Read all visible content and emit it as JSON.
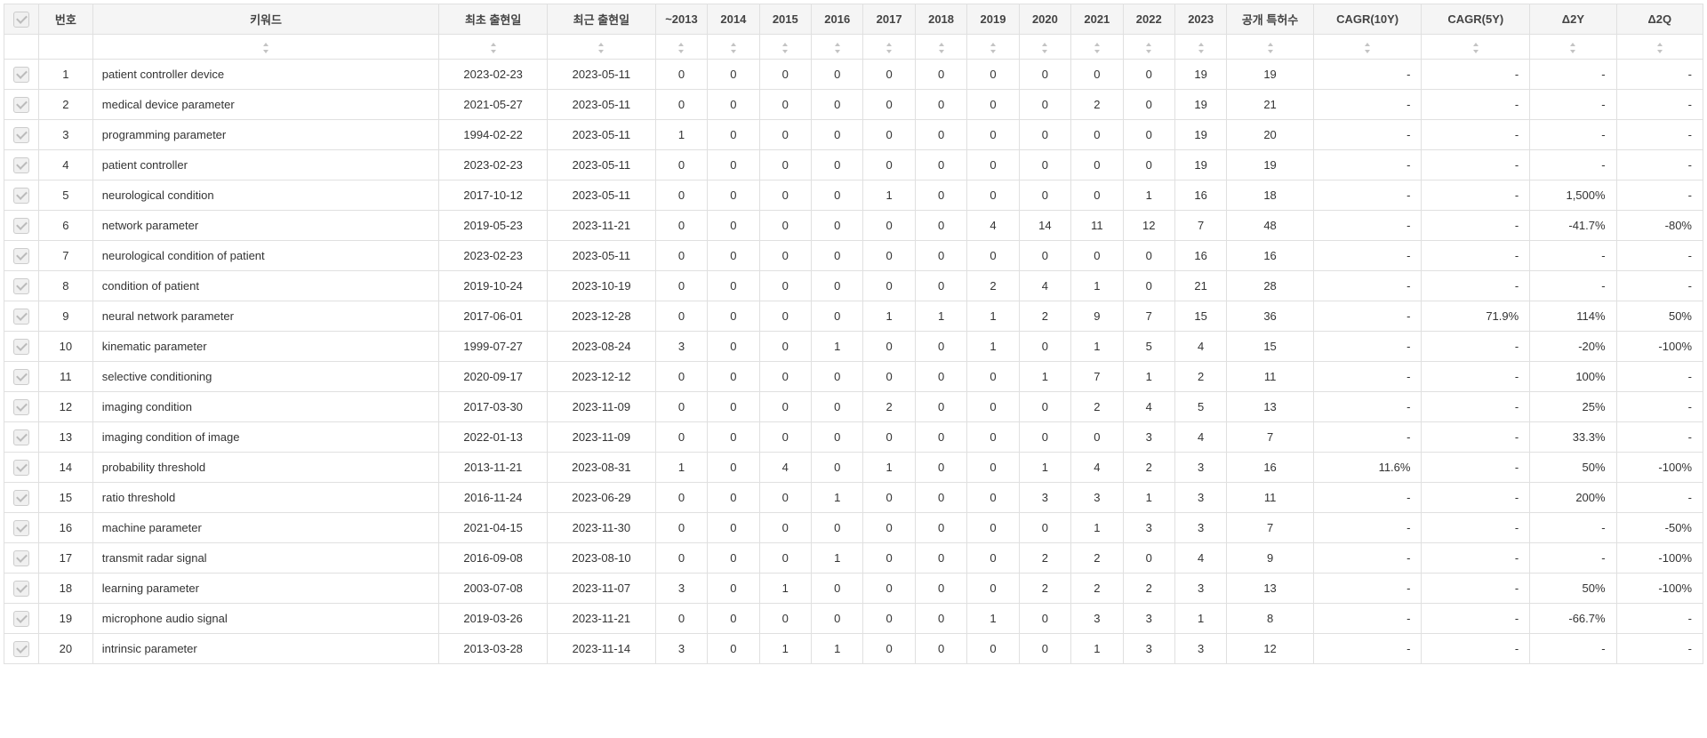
{
  "columns": {
    "check": "",
    "num": "번호",
    "keyword": "키워드",
    "first": "최초 출현일",
    "recent": "최근 출현일",
    "y2013": "~2013",
    "y2014": "2014",
    "y2015": "2015",
    "y2016": "2016",
    "y2017": "2017",
    "y2018": "2018",
    "y2019": "2019",
    "y2020": "2020",
    "y2021": "2021",
    "y2022": "2022",
    "y2023": "2023",
    "pub": "공개 특허수",
    "cagr10": "CAGR(10Y)",
    "cagr5": "CAGR(5Y)",
    "d2y": "Δ2Y",
    "d2q": "Δ2Q"
  },
  "rows": [
    {
      "n": "1",
      "kw": "patient controller device",
      "first": "2023-02-23",
      "recent": "2023-05-11",
      "y": [
        "0",
        "0",
        "0",
        "0",
        "0",
        "0",
        "0",
        "0",
        "0",
        "0",
        "19"
      ],
      "pub": "19",
      "c10": "-",
      "c5": "-",
      "d2y": "-",
      "d2q": "-"
    },
    {
      "n": "2",
      "kw": "medical device parameter",
      "first": "2021-05-27",
      "recent": "2023-05-11",
      "y": [
        "0",
        "0",
        "0",
        "0",
        "0",
        "0",
        "0",
        "0",
        "2",
        "0",
        "19"
      ],
      "pub": "21",
      "c10": "-",
      "c5": "-",
      "d2y": "-",
      "d2q": "-"
    },
    {
      "n": "3",
      "kw": "programming parameter",
      "first": "1994-02-22",
      "recent": "2023-05-11",
      "y": [
        "1",
        "0",
        "0",
        "0",
        "0",
        "0",
        "0",
        "0",
        "0",
        "0",
        "19"
      ],
      "pub": "20",
      "c10": "-",
      "c5": "-",
      "d2y": "-",
      "d2q": "-"
    },
    {
      "n": "4",
      "kw": "patient controller",
      "first": "2023-02-23",
      "recent": "2023-05-11",
      "y": [
        "0",
        "0",
        "0",
        "0",
        "0",
        "0",
        "0",
        "0",
        "0",
        "0",
        "19"
      ],
      "pub": "19",
      "c10": "-",
      "c5": "-",
      "d2y": "-",
      "d2q": "-"
    },
    {
      "n": "5",
      "kw": "neurological condition",
      "first": "2017-10-12",
      "recent": "2023-05-11",
      "y": [
        "0",
        "0",
        "0",
        "0",
        "1",
        "0",
        "0",
        "0",
        "0",
        "1",
        "16"
      ],
      "pub": "18",
      "c10": "-",
      "c5": "-",
      "d2y": "1,500%",
      "d2q": "-"
    },
    {
      "n": "6",
      "kw": "network parameter",
      "first": "2019-05-23",
      "recent": "2023-11-21",
      "y": [
        "0",
        "0",
        "0",
        "0",
        "0",
        "0",
        "4",
        "14",
        "11",
        "12",
        "7"
      ],
      "pub": "48",
      "c10": "-",
      "c5": "-",
      "d2y": "-41.7%",
      "d2q": "-80%"
    },
    {
      "n": "7",
      "kw": "neurological condition of patient",
      "first": "2023-02-23",
      "recent": "2023-05-11",
      "y": [
        "0",
        "0",
        "0",
        "0",
        "0",
        "0",
        "0",
        "0",
        "0",
        "0",
        "16"
      ],
      "pub": "16",
      "c10": "-",
      "c5": "-",
      "d2y": "-",
      "d2q": "-"
    },
    {
      "n": "8",
      "kw": "condition of patient",
      "first": "2019-10-24",
      "recent": "2023-10-19",
      "y": [
        "0",
        "0",
        "0",
        "0",
        "0",
        "0",
        "2",
        "4",
        "1",
        "0",
        "21"
      ],
      "pub": "28",
      "c10": "-",
      "c5": "-",
      "d2y": "-",
      "d2q": "-"
    },
    {
      "n": "9",
      "kw": "neural network parameter",
      "first": "2017-06-01",
      "recent": "2023-12-28",
      "y": [
        "0",
        "0",
        "0",
        "0",
        "1",
        "1",
        "1",
        "2",
        "9",
        "7",
        "15"
      ],
      "pub": "36",
      "c10": "-",
      "c5": "71.9%",
      "d2y": "114%",
      "d2q": "50%"
    },
    {
      "n": "10",
      "kw": "kinematic parameter",
      "first": "1999-07-27",
      "recent": "2023-08-24",
      "y": [
        "3",
        "0",
        "0",
        "1",
        "0",
        "0",
        "1",
        "0",
        "1",
        "5",
        "4"
      ],
      "pub": "15",
      "c10": "-",
      "c5": "-",
      "d2y": "-20%",
      "d2q": "-100%"
    },
    {
      "n": "11",
      "kw": "selective conditioning",
      "first": "2020-09-17",
      "recent": "2023-12-12",
      "y": [
        "0",
        "0",
        "0",
        "0",
        "0",
        "0",
        "0",
        "1",
        "7",
        "1",
        "2"
      ],
      "pub": "11",
      "c10": "-",
      "c5": "-",
      "d2y": "100%",
      "d2q": "-"
    },
    {
      "n": "12",
      "kw": "imaging condition",
      "first": "2017-03-30",
      "recent": "2023-11-09",
      "y": [
        "0",
        "0",
        "0",
        "0",
        "2",
        "0",
        "0",
        "0",
        "2",
        "4",
        "5"
      ],
      "pub": "13",
      "c10": "-",
      "c5": "-",
      "d2y": "25%",
      "d2q": "-"
    },
    {
      "n": "13",
      "kw": "imaging condition of image",
      "first": "2022-01-13",
      "recent": "2023-11-09",
      "y": [
        "0",
        "0",
        "0",
        "0",
        "0",
        "0",
        "0",
        "0",
        "0",
        "3",
        "4"
      ],
      "pub": "7",
      "c10": "-",
      "c5": "-",
      "d2y": "33.3%",
      "d2q": "-"
    },
    {
      "n": "14",
      "kw": "probability threshold",
      "first": "2013-11-21",
      "recent": "2023-08-31",
      "y": [
        "1",
        "0",
        "4",
        "0",
        "1",
        "0",
        "0",
        "1",
        "4",
        "2",
        "3"
      ],
      "pub": "16",
      "c10": "11.6%",
      "c5": "-",
      "d2y": "50%",
      "d2q": "-100%"
    },
    {
      "n": "15",
      "kw": "ratio threshold",
      "first": "2016-11-24",
      "recent": "2023-06-29",
      "y": [
        "0",
        "0",
        "0",
        "1",
        "0",
        "0",
        "0",
        "3",
        "3",
        "1",
        "3"
      ],
      "pub": "11",
      "c10": "-",
      "c5": "-",
      "d2y": "200%",
      "d2q": "-"
    },
    {
      "n": "16",
      "kw": "machine parameter",
      "first": "2021-04-15",
      "recent": "2023-11-30",
      "y": [
        "0",
        "0",
        "0",
        "0",
        "0",
        "0",
        "0",
        "0",
        "1",
        "3",
        "3"
      ],
      "pub": "7",
      "c10": "-",
      "c5": "-",
      "d2y": "-",
      "d2q": "-50%"
    },
    {
      "n": "17",
      "kw": "transmit radar signal",
      "first": "2016-09-08",
      "recent": "2023-08-10",
      "y": [
        "0",
        "0",
        "0",
        "1",
        "0",
        "0",
        "0",
        "2",
        "2",
        "0",
        "4"
      ],
      "pub": "9",
      "c10": "-",
      "c5": "-",
      "d2y": "-",
      "d2q": "-100%"
    },
    {
      "n": "18",
      "kw": "learning parameter",
      "first": "2003-07-08",
      "recent": "2023-11-07",
      "y": [
        "3",
        "0",
        "1",
        "0",
        "0",
        "0",
        "0",
        "2",
        "2",
        "2",
        "3"
      ],
      "pub": "13",
      "c10": "-",
      "c5": "-",
      "d2y": "50%",
      "d2q": "-100%"
    },
    {
      "n": "19",
      "kw": "microphone audio signal",
      "first": "2019-03-26",
      "recent": "2023-11-21",
      "y": [
        "0",
        "0",
        "0",
        "0",
        "0",
        "0",
        "1",
        "0",
        "3",
        "3",
        "1"
      ],
      "pub": "8",
      "c10": "-",
      "c5": "-",
      "d2y": "-66.7%",
      "d2q": "-"
    },
    {
      "n": "20",
      "kw": "intrinsic parameter",
      "first": "2013-03-28",
      "recent": "2023-11-14",
      "y": [
        "3",
        "0",
        "1",
        "1",
        "0",
        "0",
        "0",
        "0",
        "1",
        "3",
        "3"
      ],
      "pub": "12",
      "c10": "-",
      "c5": "-",
      "d2y": "-",
      "d2q": "-"
    }
  ]
}
